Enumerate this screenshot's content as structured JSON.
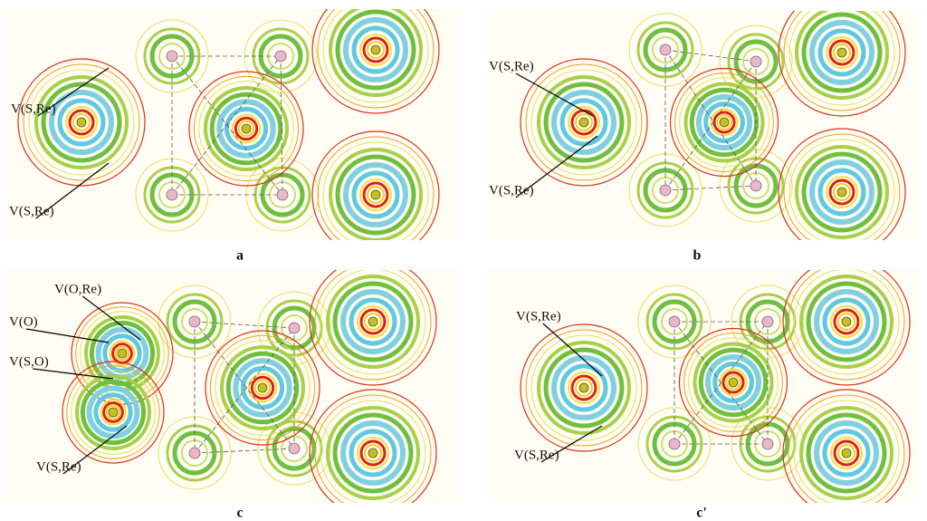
{
  "panels": [
    {
      "label": "a",
      "annotations": [
        {
          "text": "V(S,Re)"
        },
        {
          "text": "V(S,Re)"
        }
      ]
    },
    {
      "label": "b",
      "annotations": [
        {
          "text": "V(S,Re)"
        },
        {
          "text": "V(S,Re)"
        }
      ]
    },
    {
      "label": "c",
      "annotations": [
        {
          "text": "V(O,Re)"
        },
        {
          "text": "V(O)"
        },
        {
          "text": "V(S,O)"
        },
        {
          "text": "V(S,Re)"
        }
      ]
    },
    {
      "label": "c'",
      "annotations": [
        {
          "text": "V(S,Re)"
        },
        {
          "text": "V(S,Re)"
        }
      ]
    }
  ]
}
